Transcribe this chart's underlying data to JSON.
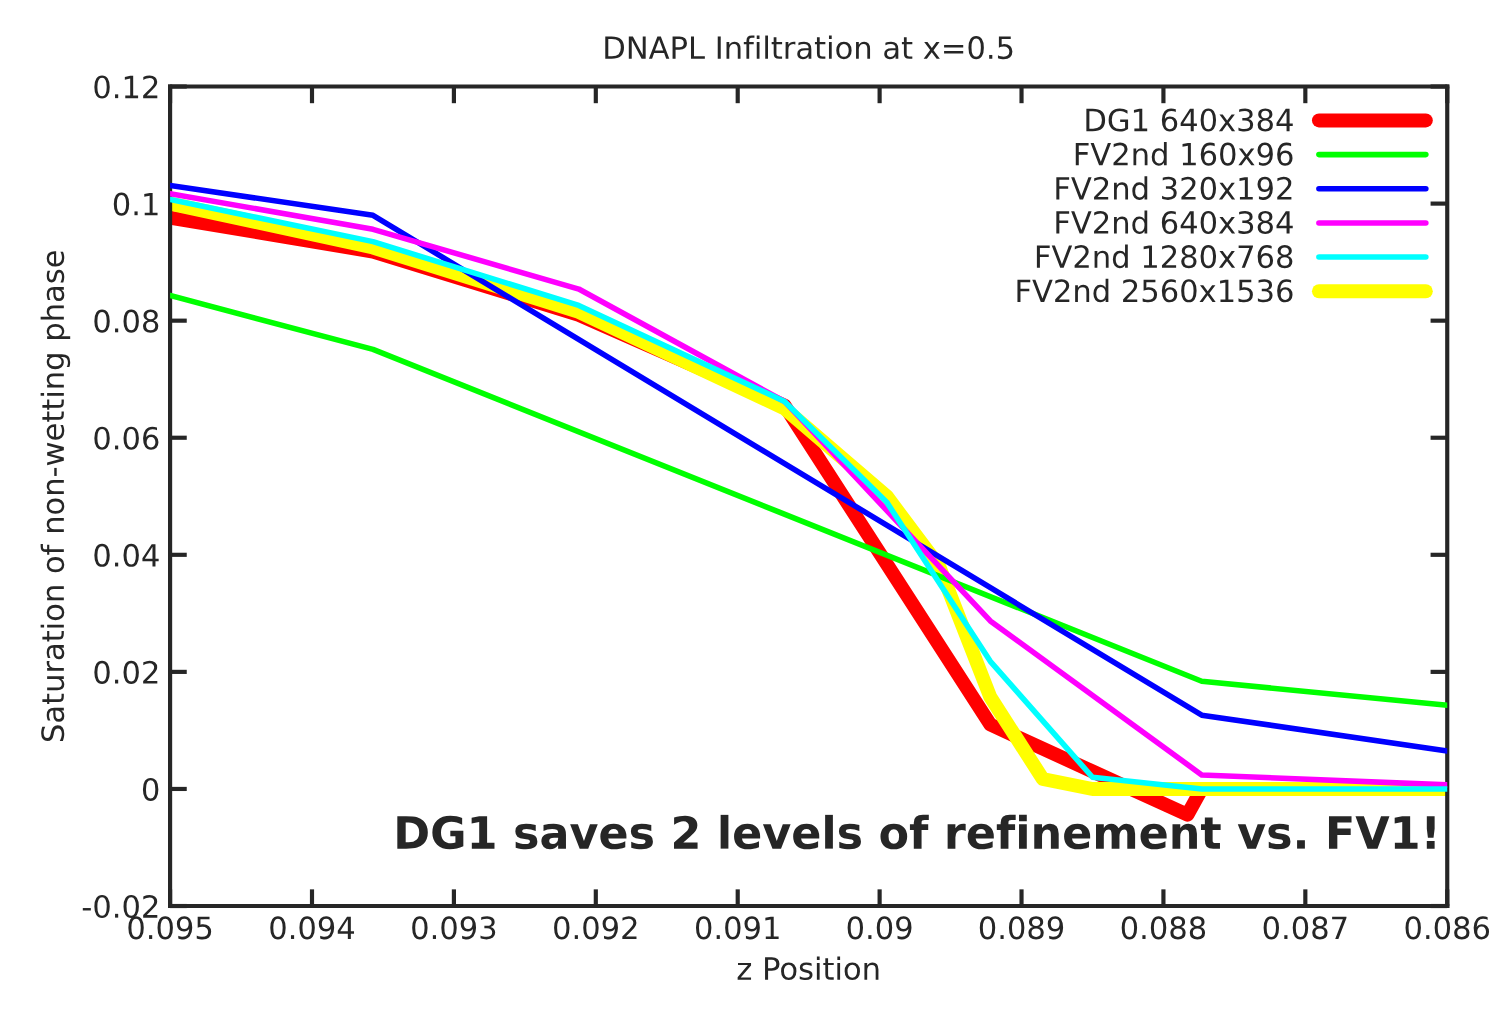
{
  "chart_data": {
    "type": "line",
    "title": "DNAPL Infiltration at x=0.5",
    "xlabel": "z Position",
    "ylabel": "Saturation of non-wetting phase",
    "xlim": [
      0.095,
      0.086
    ],
    "xticks": [
      0.095,
      0.094,
      0.093,
      0.092,
      0.091,
      0.09,
      0.089,
      0.088,
      0.087,
      0.086
    ],
    "ylim": [
      -0.02,
      0.12
    ],
    "yticks": [
      -0.02,
      0,
      0.02,
      0.04,
      0.06,
      0.08,
      0.1,
      0.12
    ],
    "grid": false,
    "legend": "top right",
    "line_style": "solid",
    "marker": "none",
    "series": [
      {
        "name": "DG1 640x384",
        "color": "#ff0000",
        "x": [
          0.095,
          0.09357,
          0.09212,
          0.09067,
          0.08922,
          0.0885,
          0.08783,
          0.08773,
          0.086
        ],
        "values": [
          0.0976,
          0.0918,
          0.081,
          0.0655,
          0.011,
          0.003,
          -0.0044,
          0.0,
          0.0
        ]
      },
      {
        "name": "FV2nd 160x96",
        "color": "#00ff00",
        "x": [
          0.095,
          0.09357,
          0.08773,
          0.086
        ],
        "values": [
          0.0843,
          0.0751,
          0.0184,
          0.0143
        ]
      },
      {
        "name": "FV2nd 320x192",
        "color": "#0000ff",
        "x": [
          0.095,
          0.09357,
          0.08773,
          0.086
        ],
        "values": [
          0.1031,
          0.098,
          0.0126,
          0.0065
        ]
      },
      {
        "name": "FV2nd 640x384",
        "color": "#ff00ff",
        "x": [
          0.095,
          0.09357,
          0.09212,
          0.09067,
          0.08922,
          0.08773,
          0.086
        ],
        "values": [
          0.1017,
          0.0956,
          0.0854,
          0.0662,
          0.0287,
          0.0024,
          0.0007
        ]
      },
      {
        "name": "FV2nd 1280x768",
        "color": "#00ffff",
        "x": [
          0.095,
          0.09357,
          0.09212,
          0.09067,
          0.08995,
          0.08922,
          0.0885,
          0.08773,
          0.086
        ],
        "values": [
          0.1007,
          0.0935,
          0.0826,
          0.0662,
          0.049,
          0.0218,
          0.002,
          0.0,
          0.0
        ]
      },
      {
        "name": "FV2nd 2560x1536",
        "color": "#ffff00",
        "x": [
          0.095,
          0.09357,
          0.09212,
          0.09067,
          0.08995,
          0.08958,
          0.08922,
          0.08885,
          0.0885,
          0.086
        ],
        "values": [
          0.1,
          0.0925,
          0.0815,
          0.065,
          0.05,
          0.038,
          0.0157,
          0.0017,
          0.0,
          0.0
        ]
      }
    ],
    "annotations": [
      "DG1 saves 2 levels of refinement vs. FV1!"
    ]
  }
}
